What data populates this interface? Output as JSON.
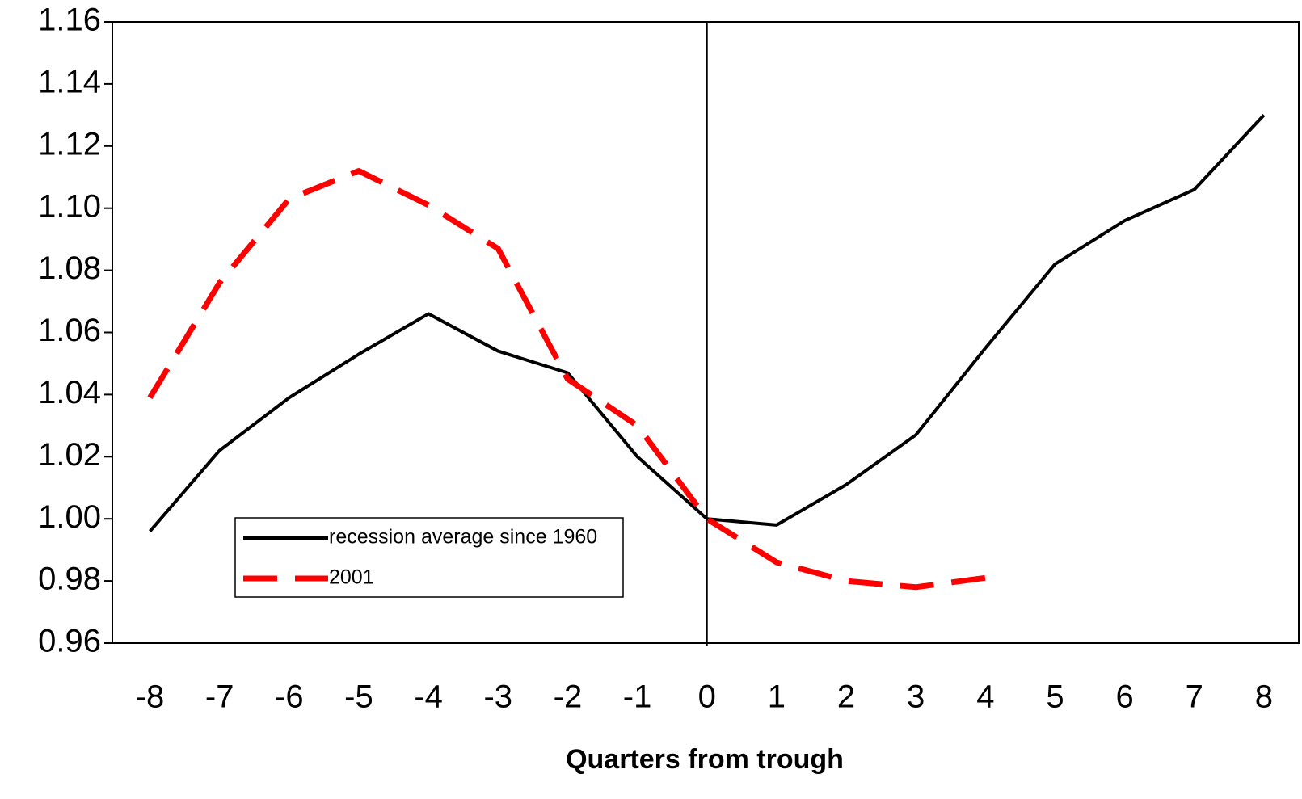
{
  "chart_data": {
    "type": "line",
    "x_label": "Quarters from trough",
    "x": [
      -8,
      -7,
      -6,
      -5,
      -4,
      -3,
      -2,
      -1,
      0,
      1,
      2,
      3,
      4,
      5,
      6,
      7,
      8
    ],
    "xlim": [
      -8.54,
      8.5
    ],
    "xticks": [
      -8,
      -7,
      -6,
      -5,
      -4,
      -3,
      -2,
      -1,
      0,
      1,
      2,
      3,
      4,
      5,
      6,
      7,
      8
    ],
    "vline": 0,
    "ylim": [
      0.96,
      1.16
    ],
    "yticks": [
      0.96,
      0.98,
      {
        "value": 1.0,
        "label": "1.00"
      },
      1.02,
      1.04,
      1.06,
      1.08,
      {
        "value": 1.1,
        "label": "1.10"
      },
      1.12,
      1.14,
      1.16
    ],
    "legend": "lower-left",
    "series": [
      {
        "name": "recession average since 1960",
        "color": "#000000",
        "dash": false,
        "values": [
          0.996,
          1.022,
          1.039,
          1.053,
          1.066,
          1.054,
          1.047,
          1.02,
          1.0,
          0.998,
          1.011,
          1.027,
          1.055,
          1.082,
          1.096,
          1.106,
          1.13
        ]
      },
      {
        "name": "2001",
        "color": "#ff0000",
        "dash": true,
        "values": [
          1.039,
          1.076,
          1.103,
          1.112,
          1.101,
          1.087,
          1.045,
          1.03,
          1.0,
          0.986,
          0.98,
          0.978,
          0.981,
          null,
          null,
          null,
          null
        ]
      }
    ]
  }
}
